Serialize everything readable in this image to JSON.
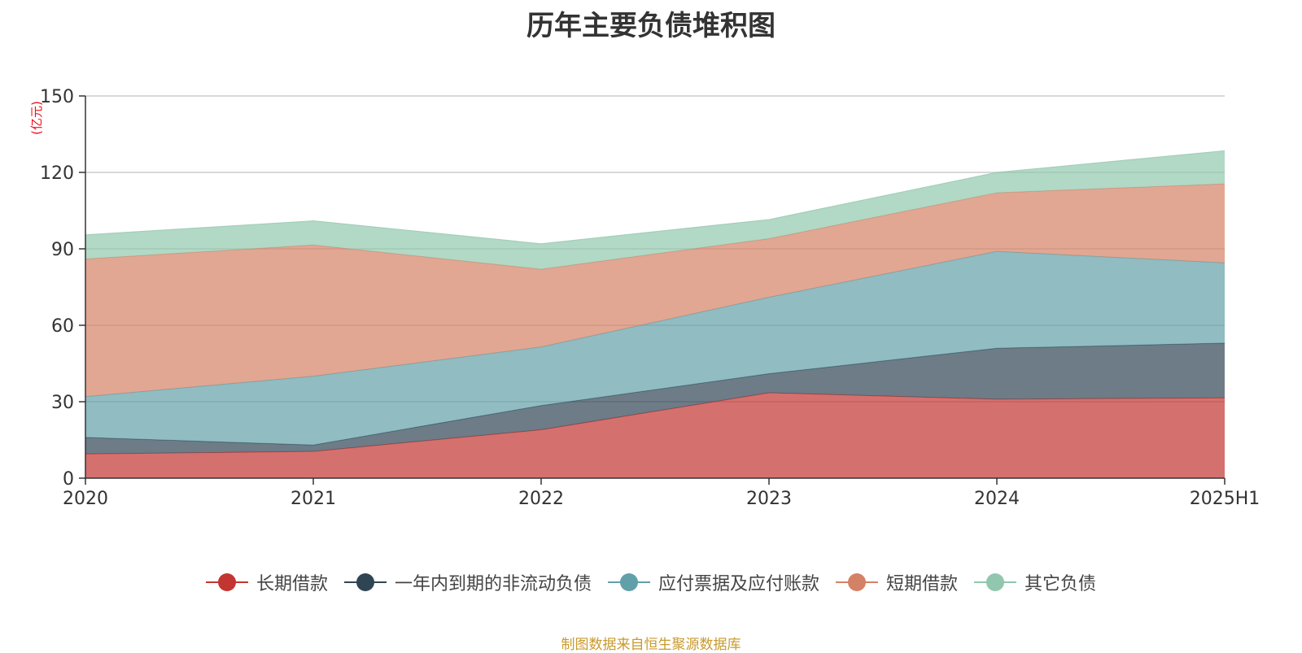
{
  "chart_data": {
    "type": "area",
    "stacked": true,
    "title": "历年主要负债堆积图",
    "unit_label": "(亿元)",
    "categories": [
      "2020",
      "2021",
      "2022",
      "2023",
      "2024",
      "2025H1"
    ],
    "ylim": [
      0,
      150
    ],
    "yticks": [
      0,
      30,
      60,
      90,
      120,
      150
    ],
    "grid": true,
    "legend_position": "bottom",
    "series": [
      {
        "name": "长期借款",
        "color": "#c23531",
        "values": [
          9.5,
          10.5,
          19,
          33.5,
          31,
          31.5
        ]
      },
      {
        "name": "一年内到期的非流动负债",
        "color": "#2f4554",
        "values": [
          6.5,
          2.5,
          9.5,
          7.5,
          20,
          21.5
        ]
      },
      {
        "name": "应付票据及应付账款",
        "color": "#61a0a8",
        "values": [
          16,
          27,
          23,
          30,
          38,
          31.5
        ]
      },
      {
        "name": "短期借款",
        "color": "#d48265",
        "values": [
          54,
          51.5,
          30.5,
          23,
          23,
          31
        ]
      },
      {
        "name": "其它负债",
        "color": "#91c7ae",
        "values": [
          9.5,
          9.5,
          10,
          7.5,
          8,
          13
        ]
      }
    ],
    "source_note": "制图数据来自恒生聚源数据库"
  }
}
